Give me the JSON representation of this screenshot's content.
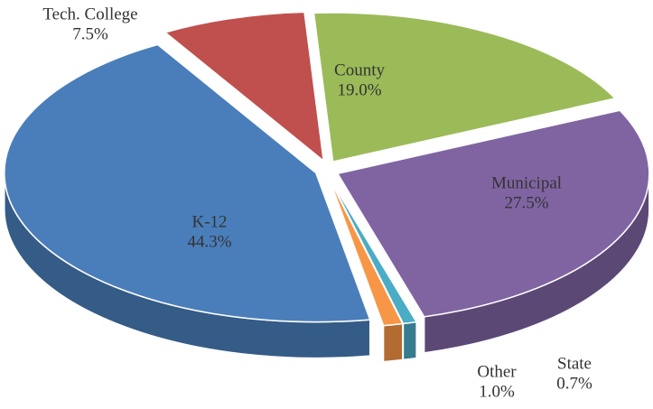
{
  "chart_data": {
    "type": "pie",
    "categories": [
      "K-12",
      "Tech. College",
      "County",
      "Municipal",
      "State",
      "Other"
    ],
    "values": [
      44.3,
      7.5,
      19.0,
      27.5,
      0.7,
      1.0
    ],
    "value_labels": [
      "44.3%",
      "7.5%",
      "19.0%",
      "27.5%",
      "0.7%",
      "1.0%"
    ],
    "colors": [
      "#4a7ebb",
      "#c0504d",
      "#9bbb59",
      "#8064a2",
      "#4bacc6",
      "#f79646"
    ]
  }
}
